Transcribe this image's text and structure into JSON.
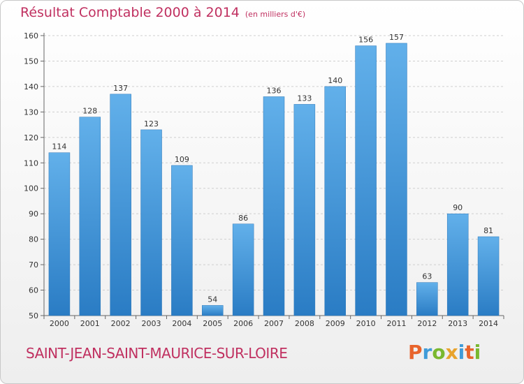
{
  "header": {
    "title": "Résultat Comptable 2000 à 2014",
    "subtitle": "(en milliers d'€)"
  },
  "footer": {
    "city": "SAINT-JEAN-SAINT-MAURICE-SUR-LOIRE",
    "logo_letters": [
      "P",
      "r",
      "o",
      "x",
      "i",
      "t",
      "i"
    ],
    "logo_colors": [
      "#e8642c",
      "#3f9bd8",
      "#7ab82f",
      "#e8a32c",
      "#3f9bd8",
      "#e8642c",
      "#7ab82f"
    ]
  },
  "chart_data": {
    "type": "bar",
    "title": "Résultat Comptable 2000 à 2014",
    "subtitle": "(en milliers d'€)",
    "categories": [
      "2000",
      "2001",
      "2002",
      "2003",
      "2004",
      "2005",
      "2006",
      "2007",
      "2008",
      "2009",
      "2010",
      "2011",
      "2012",
      "2013",
      "2014"
    ],
    "values": [
      114,
      128,
      137,
      123,
      109,
      54,
      86,
      136,
      133,
      140,
      156,
      157,
      63,
      90,
      81
    ],
    "ylim": [
      50,
      160
    ],
    "yticks": [
      50,
      60,
      70,
      80,
      90,
      100,
      110,
      120,
      130,
      140,
      150,
      160
    ],
    "grid": true,
    "bar_color": "#3a8fd6"
  }
}
